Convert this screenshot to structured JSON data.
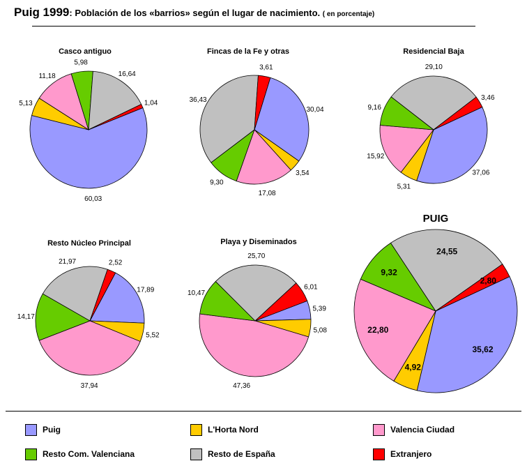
{
  "title": {
    "main": "Puig 1999",
    "rest": ": Población de los «barrios» según el lugar de nacimiento.",
    "note": "( en porcentaje)"
  },
  "colors": {
    "puig": "#9999ff",
    "lhorta": "#ffcc00",
    "valencia": "#ff99cc",
    "resto_cv": "#66cc00",
    "espana": "#c0c0c0",
    "extranjero": "#ff0000"
  },
  "legend": [
    {
      "key": "puig",
      "label": "Puig"
    },
    {
      "key": "lhorta",
      "label": "L'Horta Nord"
    },
    {
      "key": "valencia",
      "label": "Valencia Ciudad"
    },
    {
      "key": "resto_cv",
      "label": "Resto Com. Valenciana"
    },
    {
      "key": "espana",
      "label": "Resto de España"
    },
    {
      "key": "extranjero",
      "label": "Extranjero"
    }
  ],
  "chart_data": [
    {
      "type": "pie",
      "title": "Casco antiguo",
      "categories": [
        "Puig",
        "L'Horta Nord",
        "Valencia Ciudad",
        "Resto Com. Valenciana",
        "Resto de España",
        "Extranjero"
      ],
      "values": [
        60.03,
        5.13,
        11.18,
        5.98,
        16.64,
        1.04
      ],
      "labels": [
        "60,03",
        "5,13",
        "11,18",
        "5,98",
        "16,64",
        "1,04"
      ]
    },
    {
      "type": "pie",
      "title": "Fincas de la Fe y otras",
      "categories": [
        "Puig",
        "L'Horta Nord",
        "Valencia Ciudad",
        "Resto Com. Valenciana",
        "Resto de España",
        "Extranjero"
      ],
      "values": [
        30.04,
        3.54,
        17.08,
        9.3,
        36.43,
        3.61
      ],
      "labels": [
        "30,04",
        "3,54",
        "17,08",
        "9,30",
        "36,43",
        "3,61"
      ]
    },
    {
      "type": "pie",
      "title": "Residencial Baja",
      "categories": [
        "Puig",
        "L'Horta Nord",
        "Valencia Ciudad",
        "Resto Com. Valenciana",
        "Resto de España",
        "Extranjero"
      ],
      "values": [
        37.06,
        5.31,
        15.92,
        9.16,
        29.1,
        3.46
      ],
      "labels": [
        "37,06",
        "5,31",
        "15,92",
        "9,16",
        "29,10",
        "3,46"
      ]
    },
    {
      "type": "pie",
      "title": "Resto Núcleo Principal",
      "categories": [
        "Puig",
        "L'Horta Nord",
        "Valencia Ciudad",
        "Resto Com. Valenciana",
        "Resto de España",
        "Extranjero"
      ],
      "values": [
        17.89,
        5.52,
        37.94,
        14.17,
        21.97,
        2.52
      ],
      "labels": [
        "17,89",
        "5,52",
        "37,94",
        "14,17",
        "21,97",
        "2,52"
      ]
    },
    {
      "type": "pie",
      "title": "Playa y Diseminados",
      "categories": [
        "Puig",
        "L'Horta Nord",
        "Valencia Ciudad",
        "Resto Com. Valenciana",
        "Resto de España",
        "Extranjero"
      ],
      "values": [
        5.39,
        5.08,
        47.36,
        10.47,
        25.7,
        6.01
      ],
      "labels": [
        "5,39",
        "5,08",
        "47,36",
        "10,47",
        "25,70",
        "6,01"
      ]
    },
    {
      "type": "pie",
      "title": "PUIG",
      "categories": [
        "Puig",
        "L'Horta Nord",
        "Valencia Ciudad",
        "Resto Com. Valenciana",
        "Resto de España",
        "Extranjero"
      ],
      "values": [
        35.62,
        4.92,
        22.8,
        9.32,
        24.55,
        2.8
      ],
      "labels": [
        "35,62",
        "4,92",
        "22,80",
        "9,32",
        "24,55",
        "2,80"
      ]
    }
  ]
}
